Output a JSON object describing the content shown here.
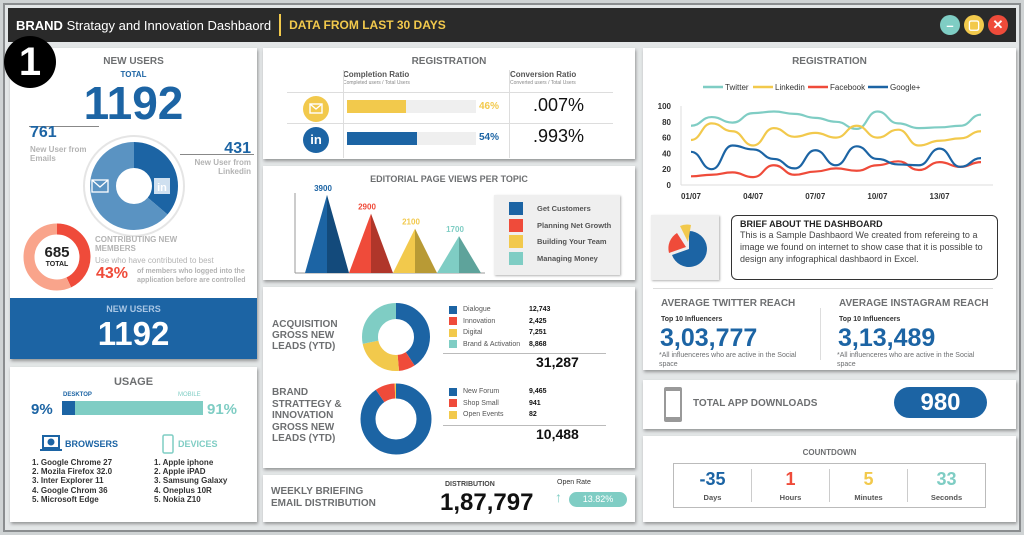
{
  "header": {
    "brand": "BRAND",
    "title": "Stratagy and Innovation Dashbaord",
    "period": "DATA FROM LAST 30 DAYS",
    "minimize": "–",
    "maximize": "▢",
    "close": "✕"
  },
  "badge": "1",
  "new_users": {
    "title": "NEW USERS",
    "total_label": "TOTAL",
    "total": "1192",
    "email_value": "761",
    "email_label": "New User from Emails",
    "linkedin_value": "431",
    "linkedin_label": "New User from Linkedin",
    "email_count": 761,
    "linkedin_count": 431,
    "contrib_total": "685",
    "contrib_total_label": "TOTAL",
    "contrib_title": "CONTRIBUTING NEW MEMBERS",
    "contrib_sub": "Use who have contributed to best",
    "contrib_pct": "43%",
    "contrib_pct_value": 43,
    "contrib_desc": "of members who logged into the application before are controlled",
    "band_title": "NEW USERS",
    "band_value": "1192"
  },
  "usage": {
    "title": "USAGE",
    "desktop_label": "DESKTOP",
    "mobile_label": "MOBILE",
    "desktop_pct": "9%",
    "mobile_pct": "91%",
    "desktop_value": 9,
    "browsers_title": "BROWSERS",
    "browsers": [
      "1. Google Chrome 27",
      "2. Mozila Firefox 32.0",
      "3. Inter Explorer 11",
      "4. Google Chrom 36",
      "5. Microsoft Edge"
    ],
    "devices_title": "DEVICES",
    "devices": [
      "1. Apple iphone",
      "2. Apple iPAD",
      "3. Samsung Galaxy",
      "4. Oneplus 10R",
      "5. Nokia Z10"
    ]
  },
  "registration": {
    "title": "REGISTRATION",
    "completion_title": "Completion Ratio",
    "completion_sub": "Completed users / Total Users",
    "conversion_title": "Conversion Ratio",
    "conversion_sub": "Converted users / Total Users",
    "rows": [
      {
        "channel": "email",
        "completion": "46%",
        "completion_value": 46,
        "conversion": ".007%"
      },
      {
        "channel": "linkedin",
        "completion": "54%",
        "completion_value": 54,
        "conversion": ".993%",
        "icon_text": "in"
      }
    ]
  },
  "editorial": {
    "title": "EDITORIAL PAGE VIEWS PER TOPIC"
  },
  "acquisition": {
    "title": "ACQUISITION GROSS NEW LEADS (YTD)",
    "items": [
      {
        "label": "Dialogue",
        "value": "12,743"
      },
      {
        "label": "Innovation",
        "value": "2,425"
      },
      {
        "label": "Digital",
        "value": "7,251"
      },
      {
        "label": "Brand & Activation",
        "value": "8,868"
      }
    ],
    "total": "31,287"
  },
  "brand_strategy": {
    "title": "BRAND STRATTEGY & INNOVATION GROSS NEW LEADS (YTD)",
    "items": [
      {
        "label": "New Forum",
        "value": "9,465"
      },
      {
        "label": "Shop Small",
        "value": "941"
      },
      {
        "label": "Open Events",
        "value": "82"
      }
    ],
    "total": "10,488"
  },
  "weekly": {
    "title": "WEEKLY BRIEFING EMAIL DISTRIBUTION",
    "dist_label": "DISTRIBUTION",
    "dist_value": "1,87,797",
    "open_rate_label": "Open Rate",
    "open_rate": "13.82%"
  },
  "brief": {
    "title": "BRIEF ABOUT THE DASHBOARD",
    "text": "This is a Sample Dashbaord We created from refereing to a image we found on internet to show case that it is possible to design any infographical dashbaord in Excel."
  },
  "twitter_reach": {
    "title": "AVERAGE TWITTER REACH",
    "sub": "Top 10 Influencers",
    "value": "3,03,777",
    "note": "*All influenceres who are active in the Social space"
  },
  "instagram_reach": {
    "title": "AVERAGE INSTAGRAM REACH",
    "sub": "Top 10 Influencers",
    "value": "3,13,489",
    "note": "*All influenceres who are active in the Social space"
  },
  "app": {
    "label": "TOTAL APP DOWNLOADS",
    "value": "980"
  },
  "countdown": {
    "title": "COUNTDOWN",
    "items": [
      {
        "value": "-35",
        "label": "Days",
        "color": "#1c64a4"
      },
      {
        "value": "1",
        "label": "Hours",
        "color": "#ef4b3a"
      },
      {
        "value": "5",
        "label": "Minutes",
        "color": "#f2c94c"
      },
      {
        "value": "33",
        "label": "Seconds",
        "color": "#7fcdc4"
      }
    ]
  },
  "colors": {
    "blue": "#1c64a4",
    "red": "#ef4b3a",
    "yellow": "#f2c94c",
    "teal": "#7fcdc4"
  },
  "chart_data": [
    {
      "type": "bar",
      "title": "EDITORIAL PAGE VIEWS PER TOPIC",
      "categories": [
        "Get Customers",
        "Planning Net Growth",
        "Building Your Team",
        "Managing Money"
      ],
      "values": [
        3900,
        2900,
        2100,
        1700
      ],
      "colors": [
        "#1c64a4",
        "#ef4b3a",
        "#f2c94c",
        "#7fcdc4"
      ],
      "labels": [
        "3900",
        "2900",
        "2100",
        "1700"
      ],
      "legend": "right"
    },
    {
      "type": "line",
      "title": "REGISTRATION",
      "x": [
        "01/07",
        "02/07",
        "03/07",
        "04/07",
        "05/07",
        "06/07",
        "07/07",
        "08/07",
        "09/07",
        "10/07",
        "11/07",
        "12/07",
        "13/07",
        "14/07",
        "15/07"
      ],
      "xticks": [
        "01/07",
        "04/07",
        "07/07",
        "10/07",
        "13/07"
      ],
      "yticks": [
        "0",
        "20",
        "40",
        "60",
        "80",
        "100"
      ],
      "ylim": [
        0,
        100
      ],
      "legend": "top",
      "series": [
        {
          "name": "Twitter",
          "color": "#7fcdc4",
          "values": [
            75,
            86,
            79,
            91,
            93,
            90,
            85,
            80,
            71,
            93,
            78,
            72,
            73,
            75,
            89
          ]
        },
        {
          "name": "Linkedin",
          "color": "#f2c94c",
          "values": [
            57,
            78,
            68,
            50,
            72,
            61,
            66,
            60,
            75,
            60,
            70,
            50,
            56,
            59,
            68
          ]
        },
        {
          "name": "Facebook",
          "color": "#ef4b3a",
          "values": [
            11,
            13,
            16,
            10,
            25,
            13,
            17,
            21,
            18,
            25,
            30,
            19,
            29,
            23,
            29
          ]
        },
        {
          "name": "Google+",
          "color": "#1c64a4",
          "values": [
            42,
            20,
            50,
            45,
            33,
            21,
            44,
            25,
            49,
            33,
            26,
            25,
            46,
            23,
            34
          ]
        }
      ]
    },
    {
      "type": "pie",
      "title": "ACQUISITION GROSS NEW LEADS (YTD)",
      "categories": [
        "Dialogue",
        "Innovation",
        "Digital",
        "Brand & Activation"
      ],
      "values": [
        12743,
        2425,
        7251,
        8868
      ]
    },
    {
      "type": "pie",
      "title": "BRAND STRATTEGY & INNOVATION GROSS NEW LEADS (YTD)",
      "categories": [
        "New Forum",
        "Shop Small",
        "Open Events"
      ],
      "values": [
        9465,
        941,
        82
      ]
    }
  ]
}
